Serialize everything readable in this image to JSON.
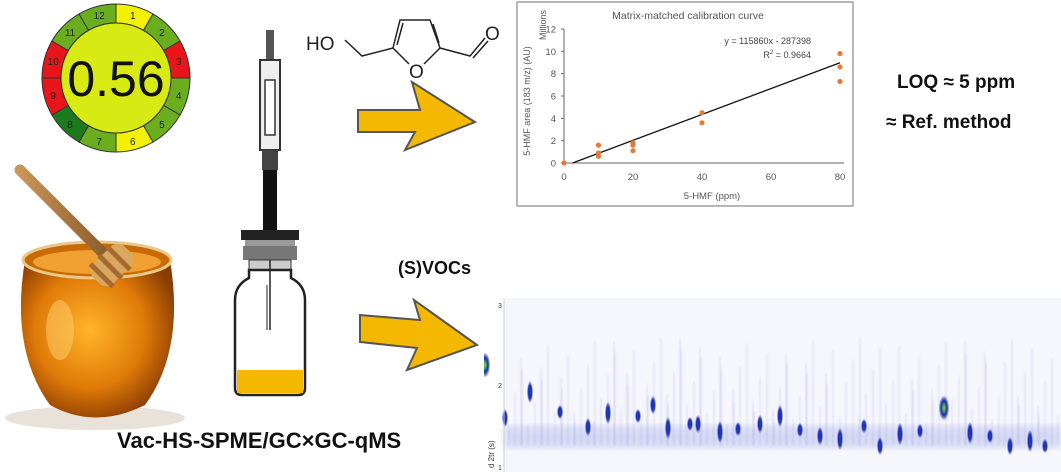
{
  "greenness_score": {
    "score": "0.56",
    "segments": [
      {
        "label": "1",
        "color": "#f2f200"
      },
      {
        "label": "2",
        "color": "#6aad1f"
      },
      {
        "label": "3",
        "color": "#e8151a"
      },
      {
        "label": "4",
        "color": "#6aad1f"
      },
      {
        "label": "5",
        "color": "#6aad1f"
      },
      {
        "label": "6",
        "color": "#f2f200"
      },
      {
        "label": "7",
        "color": "#6aad1f"
      },
      {
        "label": "8",
        "color": "#1c7a1c"
      },
      {
        "label": "9",
        "color": "#e8151a"
      },
      {
        "label": "10",
        "color": "#e8151a"
      },
      {
        "label": "11",
        "color": "#6aad1f"
      },
      {
        "label": "12",
        "color": "#6aad1f"
      }
    ],
    "center_color": "#d8ea14"
  },
  "molecule": {
    "hydroxyl_label": "HO",
    "ring_oxygen_label": "O",
    "carbonyl_oxygen_label": "O"
  },
  "labels": {
    "loq": "LOQ ≈ 5 ppm",
    "reference": "≈ Ref. method",
    "svocs": "(S)VOCs",
    "method": "Vac-HS-SPME/GC×GC-qMS"
  },
  "arrow_color": "#f5b800",
  "chart_data": {
    "type": "scatter",
    "title": "Matrix-matched calibration curve",
    "xlabel": "5-HMF (ppm)",
    "ylabel": "5-HMF area (183 m/z) (AU)",
    "yunit_label": "Millions",
    "xlim": [
      0,
      80
    ],
    "ylim": [
      0,
      12
    ],
    "xticks": [
      "0",
      "20",
      "40",
      "60",
      "80"
    ],
    "yticks": [
      "0",
      "2",
      "4",
      "6",
      "8",
      "10",
      "12"
    ],
    "grid": false,
    "marker_color": "#e07b39",
    "points": [
      {
        "x": 0,
        "y": 0
      },
      {
        "x": 10,
        "y": 1.6
      },
      {
        "x": 10,
        "y": 0.9
      },
      {
        "x": 10,
        "y": 0.6
      },
      {
        "x": 20,
        "y": 1.8
      },
      {
        "x": 20,
        "y": 1.6
      },
      {
        "x": 20,
        "y": 1.1
      },
      {
        "x": 40,
        "y": 4.5
      },
      {
        "x": 40,
        "y": 3.6
      },
      {
        "x": 80,
        "y": 9.8
      },
      {
        "x": 80,
        "y": 8.6
      },
      {
        "x": 80,
        "y": 7.3
      }
    ],
    "trendline": {
      "slope": 115860,
      "intercept": -287398,
      "equation": "y = 115860x - 287398",
      "r2_prefix": "R",
      "r2_value": " = 0.9664"
    }
  },
  "chromatogram": {
    "yaxis_label": "d 2tr (s)",
    "yticks": [
      "3",
      "2",
      "1"
    ]
  }
}
